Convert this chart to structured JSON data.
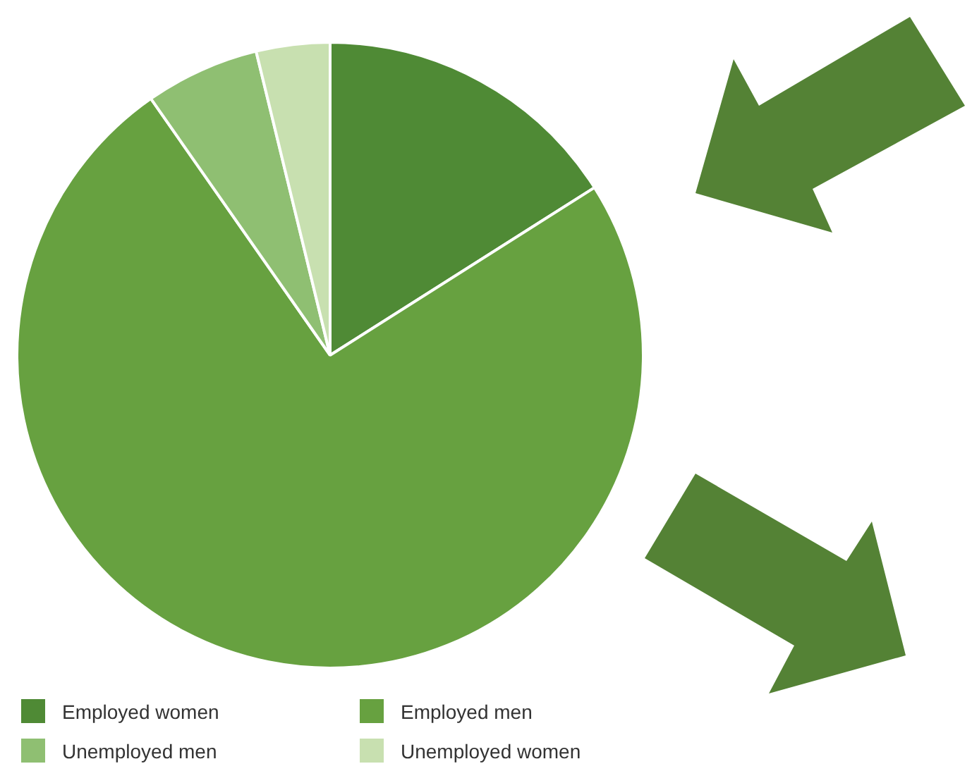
{
  "chart_data": {
    "type": "pie",
    "categories": [
      "Employed women",
      "Employed men",
      "Unemployed men",
      "Unemployed women"
    ],
    "values": [
      16.0,
      74.3,
      5.9,
      3.8
    ],
    "colors": [
      "#4f8a35",
      "#67a140",
      "#8fbf72",
      "#c8e0b0"
    ],
    "legend": "bottom"
  }
}
